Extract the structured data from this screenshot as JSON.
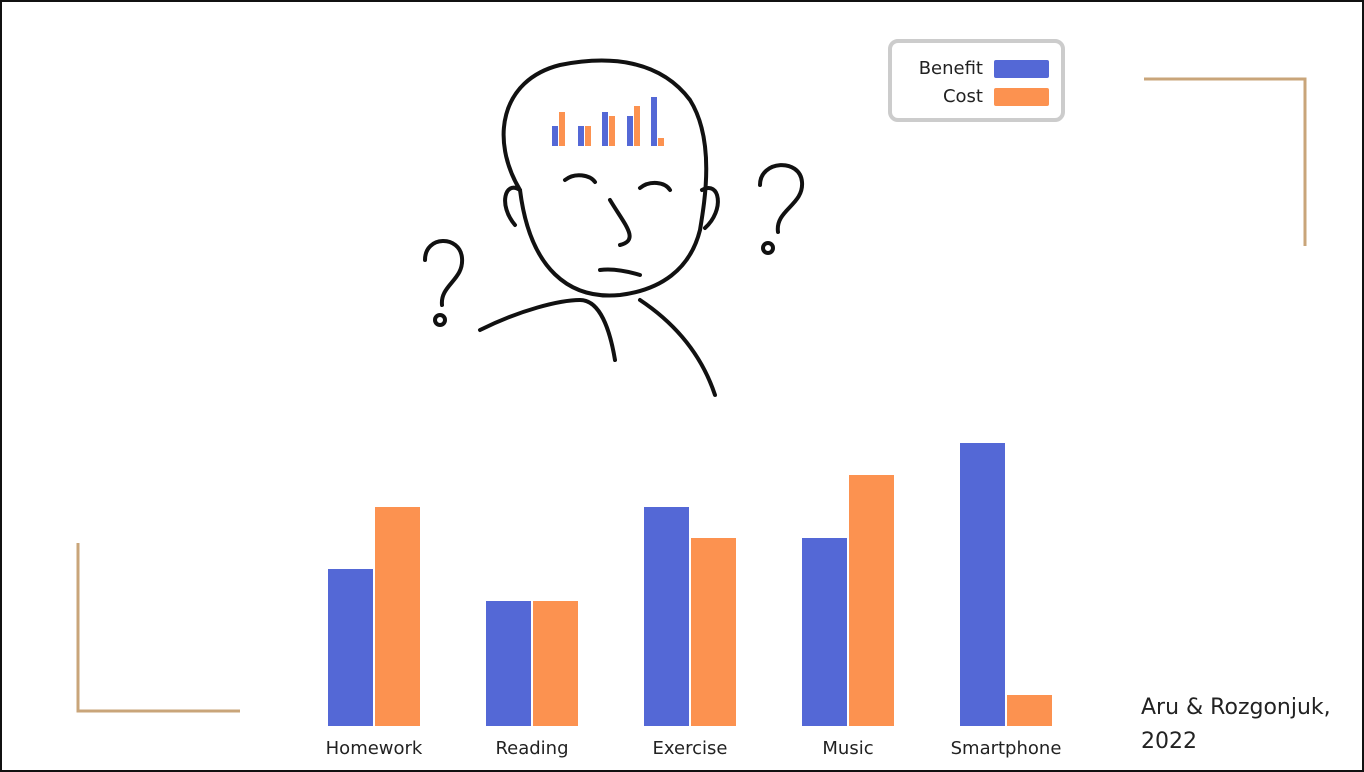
{
  "chart_data": {
    "type": "bar",
    "categories": [
      "Homework",
      "Reading",
      "Exercise",
      "Music",
      "Smartphone"
    ],
    "series": [
      {
        "name": "Benefit",
        "color": "#5468d6",
        "values": [
          157,
          125,
          219,
          188,
          283
        ]
      },
      {
        "name": "Cost",
        "color": "#fc9250",
        "values": [
          219,
          125,
          188,
          251,
          31
        ]
      }
    ],
    "legend": "top-right",
    "citation": [
      "Aru & Rozgonjuk,",
      "2022"
    ]
  }
}
